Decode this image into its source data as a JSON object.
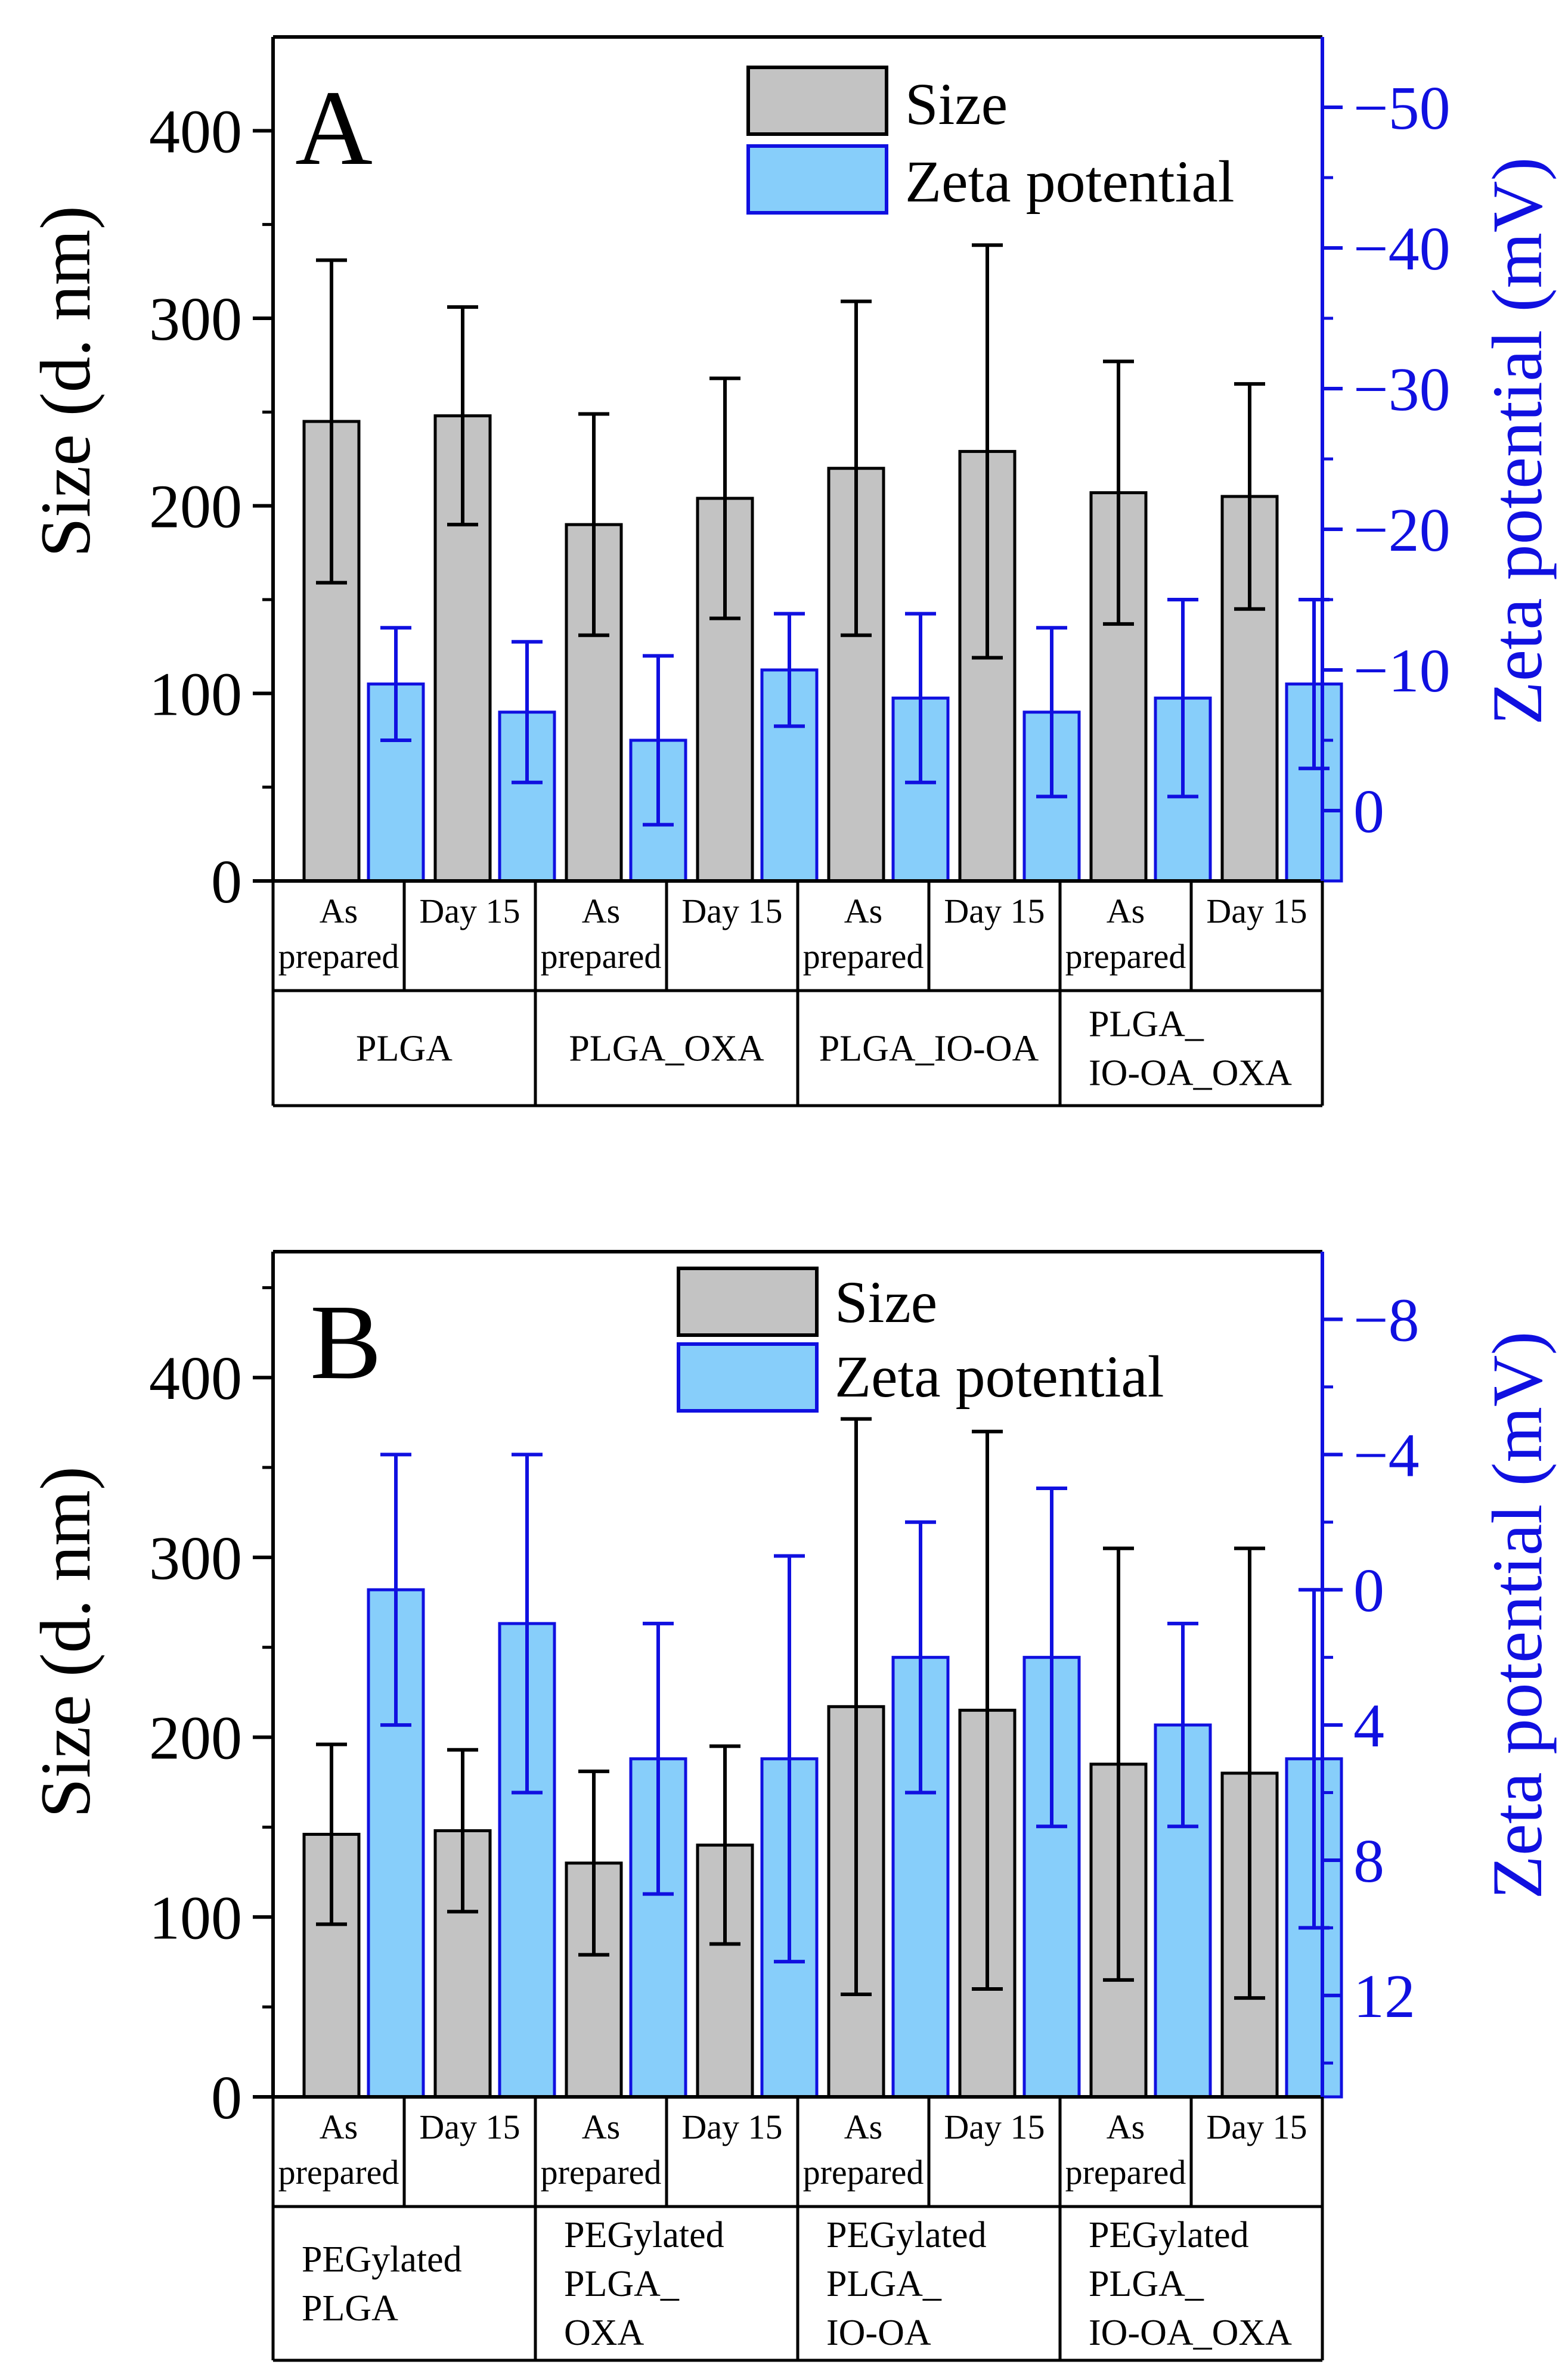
{
  "colors": {
    "size_fill": "#c3c3c3",
    "zeta_fill": "#87cefa",
    "zeta_edge": "#1010e0",
    "axis": "#000000",
    "right_axis": "#1010e0"
  },
  "chart_data": [
    {
      "type": "bar",
      "panel_label": "A",
      "left_ylabel": "Size (d. nm)",
      "right_ylabel": "Zeta potential (mV)",
      "left_ylim": [
        0,
        450
      ],
      "left_ticks": [
        0,
        100,
        200,
        300,
        400
      ],
      "right_ylim": [
        5,
        -55
      ],
      "right_ticks": [
        0,
        -10,
        -20,
        -30,
        -40,
        -50
      ],
      "right_tick_labels": [
        "0",
        "−10",
        "−20",
        "−30",
        "−40",
        "−50"
      ],
      "legend": [
        "Size",
        "Zeta potential"
      ],
      "legend_position": "top-right",
      "categories": [
        "As prepared",
        "Day 15",
        "As prepared",
        "Day 15",
        "As prepared",
        "Day 15",
        "As prepared",
        "Day 15"
      ],
      "groups": [
        {
          "label": "PLGA",
          "lines": [
            "PLGA"
          ]
        },
        {
          "label": "PLGA_OXA",
          "lines": [
            "PLGA_OXA"
          ]
        },
        {
          "label": "PLGA_IO-OA",
          "lines": [
            "PLGA_IO-OA"
          ]
        },
        {
          "label": "PLGA_ IO-OA_OXA",
          "lines": [
            "PLGA_",
            "IO-OA_OXA"
          ]
        }
      ],
      "series": [
        {
          "name": "Size",
          "values": [
            245,
            248,
            190,
            204,
            220,
            229,
            207,
            205
          ],
          "errors": [
            86,
            58,
            59,
            64,
            89,
            110,
            70,
            60
          ]
        },
        {
          "name": "Zeta potential",
          "values": [
            -9,
            -7,
            -5,
            -10,
            -8,
            -7,
            -8,
            -9
          ],
          "errors": [
            4,
            5,
            6,
            4,
            6,
            6,
            7,
            6
          ]
        }
      ]
    },
    {
      "type": "bar",
      "panel_label": "B",
      "left_ylabel": "Size (d. nm)",
      "right_ylabel": "Zeta potential (mV)",
      "left_ylim": [
        0,
        470
      ],
      "left_ticks": [
        0,
        100,
        200,
        300,
        400
      ],
      "right_ylim": [
        15,
        -10
      ],
      "right_ticks": [
        12,
        8,
        4,
        0,
        -4,
        -8
      ],
      "right_tick_labels": [
        "12",
        "8",
        "4",
        "0",
        "−4",
        "−8"
      ],
      "legend": [
        "Size",
        "Zeta potential"
      ],
      "legend_position": "top-right",
      "categories": [
        "As prepared",
        "Day 15",
        "As prepared",
        "Day 15",
        "As prepared",
        "Day 15",
        "As prepared",
        "Day 15"
      ],
      "groups": [
        {
          "label": "PEGylated PLGA",
          "lines": [
            "PEGylated",
            "PLGA"
          ]
        },
        {
          "label": "PEGylated PLGA_ OXA",
          "lines": [
            "PEGylated",
            "PLGA_",
            "OXA"
          ]
        },
        {
          "label": "PEGylated PLGA_ IO-OA",
          "lines": [
            "PEGylated",
            "PLGA_",
            "IO-OA"
          ]
        },
        {
          "label": "PEGylated PLGA_ IO-OA_OXA",
          "lines": [
            "PEGylated",
            "PLGA_",
            "IO-OA_OXA"
          ]
        }
      ],
      "series": [
        {
          "name": "Size",
          "values": [
            146,
            148,
            130,
            140,
            217,
            215,
            185,
            180
          ],
          "errors": [
            50,
            45,
            51,
            55,
            160,
            155,
            120,
            125
          ]
        },
        {
          "name": "Zeta potential",
          "values": [
            0,
            1,
            5,
            5,
            2,
            2,
            4,
            5
          ],
          "errors": [
            4,
            5,
            4,
            6,
            4,
            5,
            3,
            5
          ]
        }
      ]
    }
  ]
}
